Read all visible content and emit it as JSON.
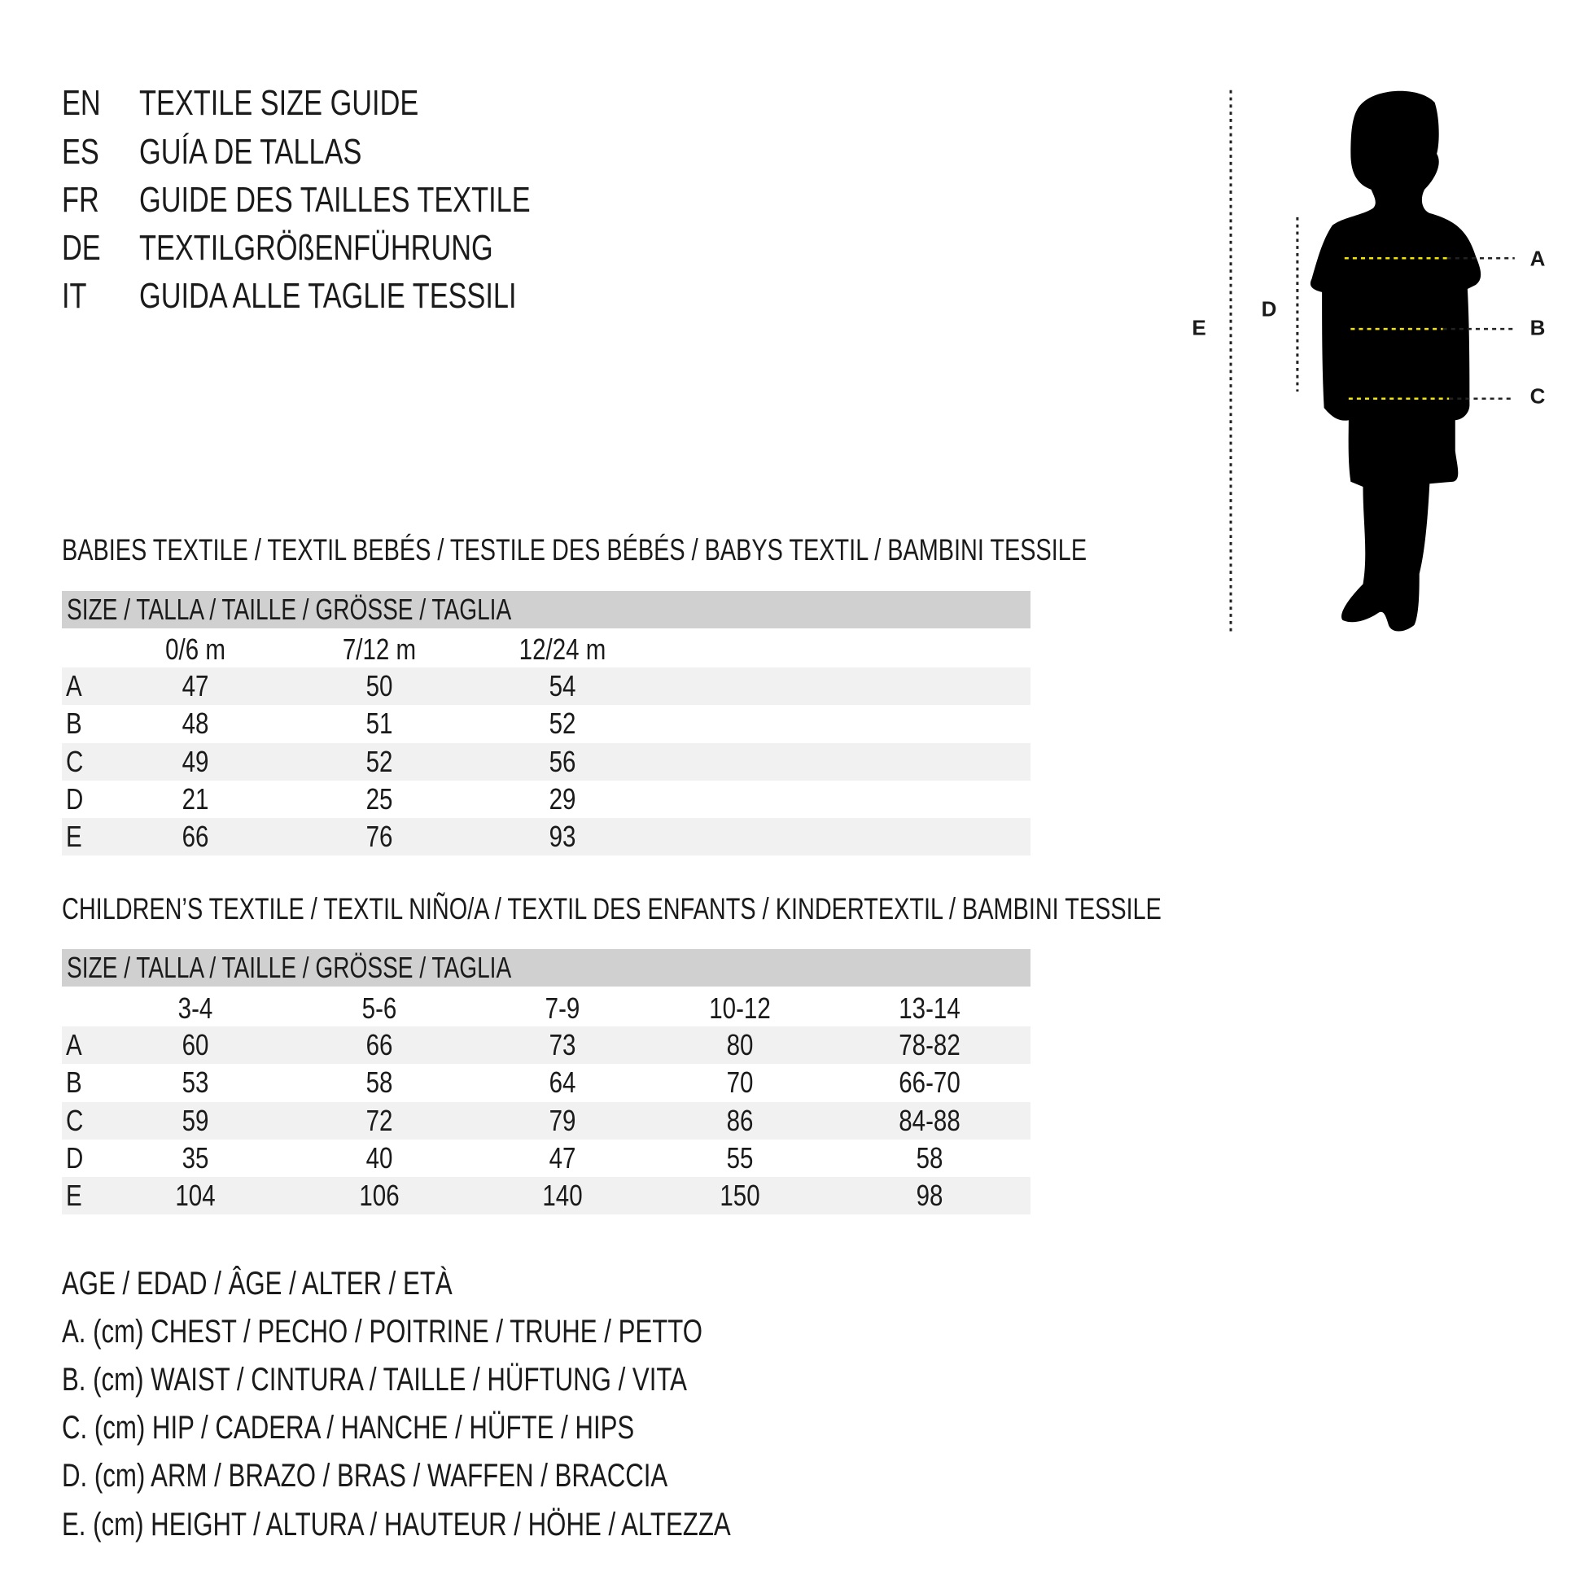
{
  "titles": [
    {
      "code": "EN",
      "text": "TEXTILE SIZE GUIDE"
    },
    {
      "code": "ES",
      "text": "GUÍA DE TALLAS"
    },
    {
      "code": "FR",
      "text": "GUIDE DES TAILLES TEXTILE"
    },
    {
      "code": "DE",
      "text": "TEXTILGRÖßENFÜHRUNG"
    },
    {
      "code": "IT",
      "text": "GUIDA ALLE TAGLIE TESSILI"
    }
  ],
  "babies": {
    "heading": "BABIES TEXTILE / TEXTIL BEBÉS / TESTILE DES BÉBÉS / BABYS TEXTIL / BAMBINI TESSILE",
    "size_label": "SIZE / TALLA / TAILLE / GRÖSSE / TAGLIA",
    "columns": [
      "0/6 m",
      "7/12 m",
      "12/24 m"
    ],
    "rows": [
      {
        "label": "A",
        "values": [
          "47",
          "50",
          "54"
        ]
      },
      {
        "label": "B",
        "values": [
          "48",
          "51",
          "52"
        ]
      },
      {
        "label": "C",
        "values": [
          "49",
          "52",
          "56"
        ]
      },
      {
        "label": "D",
        "values": [
          "21",
          "25",
          "29"
        ]
      },
      {
        "label": "E",
        "values": [
          "66",
          "76",
          "93"
        ]
      }
    ]
  },
  "children": {
    "heading": "CHILDREN’S TEXTILE / TEXTIL NIÑO/A / TEXTIL DES ENFANTS / KINDERTEXTIL / BAMBINI TESSILE",
    "size_label": "SIZE / TALLA / TAILLE / GRÖSSE / TAGLIA",
    "columns": [
      "3-4",
      "5-6",
      "7-9",
      "10-12",
      "13-14"
    ],
    "rows": [
      {
        "label": "A",
        "values": [
          "60",
          "66",
          "73",
          "80",
          "78-82"
        ]
      },
      {
        "label": "B",
        "values": [
          "53",
          "58",
          "64",
          "70",
          "66-70"
        ]
      },
      {
        "label": "C",
        "values": [
          "59",
          "72",
          "79",
          "86",
          "84-88"
        ]
      },
      {
        "label": "D",
        "values": [
          "35",
          "40",
          "47",
          "55",
          "58"
        ]
      },
      {
        "label": "E",
        "values": [
          "104",
          "106",
          "140",
          "150",
          "98"
        ]
      }
    ]
  },
  "legend": [
    "AGE / EDAD / ÂGE / ALTER / ETÀ",
    "A. (cm) CHEST / PECHO / POITRINE / TRUHE / PETTO",
    "B. (cm) WAIST / CINTURA / TAILLE / HÜFTUNG / VITA",
    "C. (cm) HIP / CADERA / HANCHE / HÜFTE / HIPS",
    "D. (cm) ARM / BRAZO / BRAS / WAFFEN / BRACCIA",
    "E. (cm) HEIGHT / ALTURA / HAUTEUR / HÖHE / ALTEZZA"
  ],
  "figure": {
    "labels": {
      "A": "A",
      "B": "B",
      "C": "C",
      "D": "D",
      "E": "E"
    },
    "measure_line_color": "#f2e600",
    "silhouette_color": "#000000",
    "shade_header": "#d0d0d0",
    "shade_row": "#f1f1f1"
  }
}
